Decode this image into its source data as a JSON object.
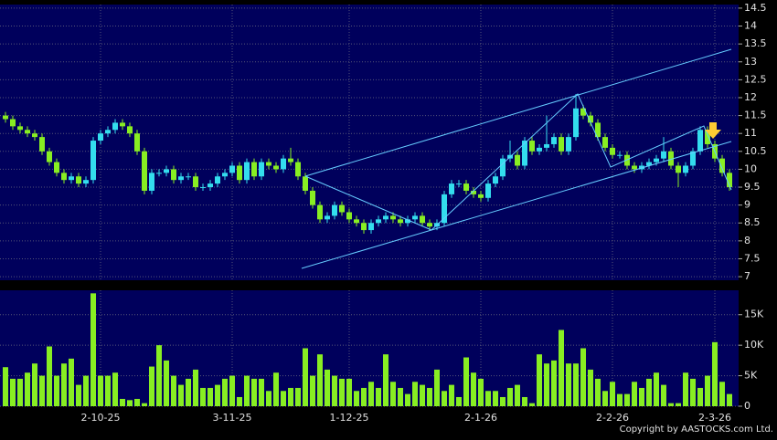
{
  "chart_data": [
    {
      "type": "candlestick",
      "open": [
        11.5,
        11.4,
        11.2,
        11.1,
        11.0,
        10.9,
        10.5,
        10.2,
        9.9,
        9.7,
        9.8,
        9.6,
        9.7,
        10.8,
        11.0,
        11.1,
        11.3,
        11.2,
        11.0,
        10.5,
        9.4,
        9.9,
        9.9,
        10.0,
        9.7,
        9.8,
        9.8,
        9.5,
        9.5,
        9.6,
        9.8,
        9.9,
        10.1,
        9.7,
        10.2,
        9.8,
        10.2,
        10.1,
        10.0,
        10.3,
        10.2,
        9.8,
        9.4,
        9.0,
        8.6,
        8.7,
        9.0,
        8.8,
        8.6,
        8.5,
        8.3,
        8.5,
        8.6,
        8.7,
        8.6,
        8.5,
        8.6,
        8.7,
        8.5,
        8.4,
        8.5,
        9.3,
        9.6,
        9.6,
        9.4,
        9.3,
        9.2,
        9.6,
        9.8,
        10.3,
        10.4,
        10.1,
        10.8,
        10.5,
        10.6,
        10.7,
        10.9,
        10.5,
        10.9,
        11.7,
        11.5,
        11.3,
        10.9,
        10.6,
        10.4,
        10.4,
        10.1,
        10.0,
        10.1,
        10.2,
        10.3,
        10.5,
        10.1,
        9.9,
        10.1,
        10.5,
        11.1,
        10.7,
        10.3,
        9.9
      ],
      "high": [
        11.6,
        11.5,
        11.3,
        11.2,
        11.1,
        11.0,
        10.6,
        10.3,
        10.0,
        9.9,
        9.9,
        9.8,
        10.9,
        11.1,
        11.2,
        11.4,
        11.4,
        11.3,
        11.1,
        10.6,
        10.0,
        10.0,
        10.1,
        10.1,
        9.9,
        9.9,
        9.9,
        9.6,
        9.7,
        9.9,
        10.0,
        10.2,
        10.2,
        10.3,
        10.3,
        10.3,
        10.3,
        10.2,
        10.4,
        10.6,
        10.3,
        9.9,
        9.5,
        9.1,
        8.8,
        9.1,
        9.1,
        8.9,
        8.7,
        8.6,
        8.6,
        8.7,
        8.8,
        8.8,
        8.7,
        8.7,
        8.8,
        8.8,
        8.6,
        8.6,
        9.4,
        9.7,
        9.7,
        9.7,
        9.5,
        9.4,
        9.7,
        9.9,
        10.4,
        10.8,
        10.5,
        10.9,
        10.9,
        10.7,
        11.5,
        11.0,
        11.0,
        11.0,
        12.1,
        11.8,
        11.6,
        11.4,
        11.0,
        10.7,
        10.5,
        10.5,
        10.2,
        10.2,
        10.3,
        10.4,
        10.9,
        10.6,
        10.2,
        10.2,
        10.6,
        11.2,
        11.2,
        10.8,
        10.4,
        10.0
      ],
      "low": [
        11.3,
        11.1,
        11.0,
        10.9,
        10.8,
        10.4,
        10.1,
        9.8,
        9.6,
        9.6,
        9.5,
        9.5,
        9.6,
        10.7,
        10.9,
        11.0,
        11.1,
        10.9,
        10.4,
        9.3,
        9.3,
        9.8,
        9.8,
        9.6,
        9.6,
        9.7,
        9.4,
        9.4,
        9.4,
        9.5,
        9.7,
        9.8,
        9.6,
        9.6,
        9.7,
        9.7,
        10.0,
        9.9,
        9.9,
        10.1,
        9.7,
        9.3,
        8.9,
        8.5,
        8.5,
        8.6,
        8.7,
        8.5,
        8.4,
        8.2,
        8.2,
        8.4,
        8.5,
        8.5,
        8.4,
        8.4,
        8.5,
        8.4,
        8.3,
        8.3,
        8.4,
        9.2,
        9.5,
        9.3,
        9.2,
        9.1,
        9.1,
        9.5,
        9.7,
        10.2,
        10.0,
        10.0,
        10.4,
        10.4,
        10.5,
        10.6,
        10.4,
        10.4,
        10.8,
        11.4,
        11.2,
        10.8,
        10.5,
        10.3,
        10.3,
        10.0,
        9.9,
        9.9,
        10.0,
        10.1,
        10.2,
        10.0,
        9.5,
        9.8,
        10.0,
        10.4,
        10.6,
        10.2,
        9.8,
        9.4
      ],
      "close": [
        11.4,
        11.2,
        11.1,
        11.0,
        10.9,
        10.5,
        10.2,
        9.9,
        9.7,
        9.8,
        9.6,
        9.7,
        10.8,
        11.0,
        11.1,
        11.3,
        11.2,
        11.0,
        10.5,
        9.4,
        9.9,
        9.9,
        10.0,
        9.7,
        9.8,
        9.8,
        9.5,
        9.5,
        9.6,
        9.8,
        9.9,
        10.1,
        9.7,
        10.2,
        9.8,
        10.2,
        10.1,
        10.0,
        10.3,
        10.2,
        9.8,
        9.4,
        9.0,
        8.6,
        8.7,
        9.0,
        8.8,
        8.6,
        8.5,
        8.3,
        8.5,
        8.6,
        8.7,
        8.6,
        8.5,
        8.6,
        8.7,
        8.5,
        8.4,
        8.5,
        9.3,
        9.6,
        9.6,
        9.4,
        9.3,
        9.2,
        9.6,
        9.8,
        10.3,
        10.4,
        10.1,
        10.8,
        10.5,
        10.6,
        10.7,
        10.9,
        10.5,
        10.9,
        11.7,
        11.5,
        11.3,
        10.9,
        10.6,
        10.4,
        10.4,
        10.1,
        10.0,
        10.1,
        10.2,
        10.3,
        10.5,
        10.1,
        9.9,
        10.1,
        10.5,
        11.1,
        10.7,
        10.3,
        9.9,
        9.5
      ],
      "up_color": "#33ddee",
      "down_color": "#88ee22",
      "ylim": [
        6.9,
        14.6
      ],
      "yticks": [
        7,
        7.5,
        8,
        8.5,
        9,
        9.5,
        10,
        10.5,
        11,
        11.5,
        12,
        12.5,
        13,
        13.5,
        14,
        14.5
      ],
      "grid": true
    },
    {
      "type": "bar",
      "categories": [
        null,
        null,
        null,
        null,
        null,
        null,
        null,
        null,
        null,
        null,
        null,
        null,
        null,
        "2-10-25",
        null,
        null,
        null,
        null,
        null,
        null,
        null,
        null,
        null,
        null,
        null,
        null,
        null,
        null,
        null,
        null,
        null,
        "3-11-25",
        null,
        null,
        null,
        null,
        null,
        null,
        null,
        null,
        null,
        null,
        null,
        null,
        null,
        null,
        null,
        "1-12-25",
        null,
        null,
        null,
        null,
        null,
        null,
        null,
        null,
        null,
        null,
        null,
        null,
        null,
        null,
        null,
        null,
        null,
        "2-1-26",
        null,
        null,
        null,
        null,
        null,
        null,
        null,
        null,
        null,
        null,
        null,
        null,
        null,
        null,
        null,
        null,
        null,
        "2-2-26",
        null,
        null,
        null,
        null,
        null,
        null,
        null,
        null,
        null,
        null,
        null,
        null,
        null,
        "2-3-26",
        null,
        null
      ],
      "values": [
        6400,
        4500,
        4500,
        5500,
        7000,
        5000,
        9800,
        5000,
        7000,
        7800,
        3500,
        5000,
        18500,
        5000,
        5000,
        5500,
        1200,
        1000,
        1200,
        500,
        6500,
        10000,
        7500,
        5000,
        3500,
        4500,
        6000,
        3000,
        3000,
        3500,
        4500,
        5000,
        1500,
        5000,
        4500,
        4500,
        2500,
        5500,
        2500,
        3000,
        3000,
        9500,
        5000,
        8500,
        6000,
        5000,
        4500,
        4500,
        2500,
        3000,
        4000,
        3000,
        8500,
        4000,
        3000,
        2000,
        4000,
        3500,
        3000,
        6000,
        2500,
        3500,
        1500,
        8000,
        5500,
        4500,
        2500,
        2500,
        1500,
        3000,
        3500,
        1500,
        500,
        8500,
        7000,
        7500,
        12500,
        7000,
        7000,
        9500,
        6000,
        4500,
        2500,
        4000,
        2000,
        2000,
        4000,
        3000,
        4500,
        5500,
        3500,
        500,
        500,
        5500,
        4500,
        3000,
        5000,
        10500,
        4000,
        2000
      ],
      "color": "#88ee22",
      "ylim": [
        0,
        19000
      ],
      "yticks": [
        0,
        {
          "value": 5000,
          "label": "5K"
        },
        {
          "value": 10000,
          "label": "10K"
        },
        {
          "value": 15000,
          "label": "15K"
        }
      ],
      "grid": true
    }
  ],
  "footer": "Copyright by AASTOCKS.com Ltd."
}
